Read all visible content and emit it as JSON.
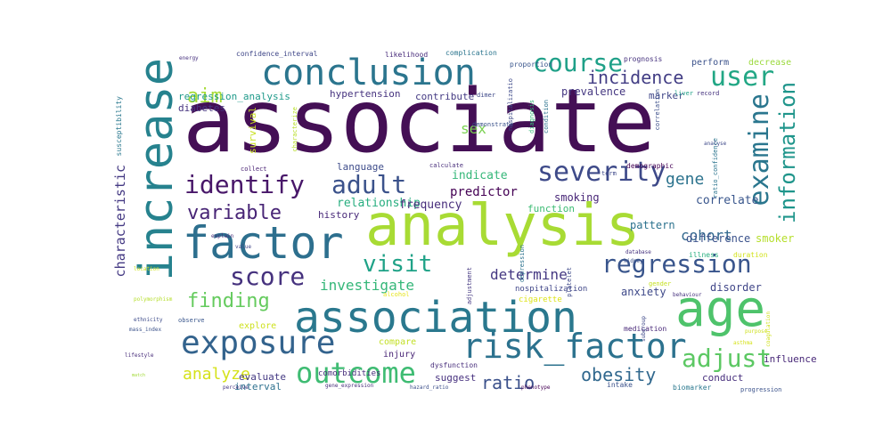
{
  "words": [
    {
      "text": "associate",
      "color": "#440f55"
    },
    {
      "text": "analysis",
      "color": "#a8db34"
    },
    {
      "text": "increase",
      "color": "#26828e"
    },
    {
      "text": "association",
      "color": "#2a788e"
    },
    {
      "text": "factor",
      "color": "#2d6f8e"
    },
    {
      "text": "age",
      "color": "#4ec36b"
    },
    {
      "text": "conclusion",
      "color": "#2b758e"
    },
    {
      "text": "risk_factor",
      "color": "#2c728e"
    },
    {
      "text": "exposure",
      "color": "#33638d"
    },
    {
      "text": "identify",
      "color": "#481769"
    },
    {
      "text": "adult",
      "color": "#3b528b"
    },
    {
      "text": "severity",
      "color": "#3e4a89"
    },
    {
      "text": "regression",
      "color": "#39558c"
    },
    {
      "text": "outcome",
      "color": "#3fbc73"
    },
    {
      "text": "course",
      "color": "#1fa088"
    },
    {
      "text": "user",
      "color": "#22a785"
    },
    {
      "text": "examine",
      "color": "#2a768e"
    },
    {
      "text": "information",
      "color": "#1f958b"
    },
    {
      "text": "variable",
      "color": "#482576"
    },
    {
      "text": "score",
      "color": "#46327e"
    },
    {
      "text": "visit",
      "color": "#1fa287"
    },
    {
      "text": "adjust",
      "color": "#5cc863"
    },
    {
      "text": "aim",
      "color": "#a5db36"
    },
    {
      "text": "finding",
      "color": "#65cb5e"
    },
    {
      "text": "analyze",
      "color": "#d5e21a"
    },
    {
      "text": "obesity",
      "color": "#31688e"
    },
    {
      "text": "ratio",
      "color": "#3b518b"
    },
    {
      "text": "characteristic",
      "color": "#443983"
    },
    {
      "text": "cohort",
      "color": "#31688e"
    },
    {
      "text": "gene",
      "color": "#2c738e"
    },
    {
      "text": "incidence",
      "color": "#433e85"
    },
    {
      "text": "investigate",
      "color": "#35b779"
    },
    {
      "text": "determine",
      "color": "#453882"
    },
    {
      "text": "sex",
      "color": "#7ad151"
    },
    {
      "text": "predictor",
      "color": "#440154"
    },
    {
      "text": "indicate",
      "color": "#35b779"
    },
    {
      "text": "relationship",
      "color": "#28ae80"
    },
    {
      "text": "frequency",
      "color": "#472d7b"
    },
    {
      "text": "smoking",
      "color": "#482677"
    },
    {
      "text": "correlate",
      "color": "#39568c"
    },
    {
      "text": "pattern",
      "color": "#2c728e"
    },
    {
      "text": "difference",
      "color": "#3b528b"
    },
    {
      "text": "smoker",
      "color": "#b5de2b"
    },
    {
      "text": "anxiety",
      "color": "#3e4989"
    },
    {
      "text": "disorder",
      "color": "#404688"
    },
    {
      "text": "conduct",
      "color": "#472f7d"
    },
    {
      "text": "influence",
      "color": "#482878"
    },
    {
      "text": "prevalence",
      "color": "#453781"
    },
    {
      "text": "marker",
      "color": "#404688"
    },
    {
      "text": "hypertension",
      "color": "#46337f"
    },
    {
      "text": "contribute",
      "color": "#443a83"
    },
    {
      "text": "regression_analysis",
      "color": "#1f9a8a"
    },
    {
      "text": "language",
      "color": "#3e4c8a"
    },
    {
      "text": "history",
      "color": "#482979"
    },
    {
      "text": "function",
      "color": "#3dbc74"
    },
    {
      "text": "suggest",
      "color": "#46307e"
    },
    {
      "text": "interval",
      "color": "#2d708e"
    },
    {
      "text": "evaluate",
      "color": "#443983"
    },
    {
      "text": "explore",
      "color": "#cde11d"
    },
    {
      "text": "compare",
      "color": "#c2df23"
    },
    {
      "text": "injury",
      "color": "#482475"
    },
    {
      "text": "comorbidities",
      "color": "#472d7b"
    },
    {
      "text": "nospitalization",
      "color": "#404688"
    },
    {
      "text": "cigarette",
      "color": "#dde318"
    },
    {
      "text": "diabetes",
      "color": "#46337f"
    },
    {
      "text": "survival",
      "color": "#c8e020"
    },
    {
      "text": "perform",
      "color": "#3b528b"
    },
    {
      "text": "decrease",
      "color": "#9bd93c"
    },
    {
      "text": "confidence_interval",
      "color": "#3f4788"
    },
    {
      "text": "likelihood",
      "color": "#472a7a"
    },
    {
      "text": "complication",
      "color": "#2b758e"
    },
    {
      "text": "prognosis",
      "color": "#46327e"
    },
    {
      "text": "proportion",
      "color": "#39558c"
    },
    {
      "text": "energy",
      "color": "#46307e"
    },
    {
      "text": "susceptibility",
      "color": "#2a788e"
    },
    {
      "text": "nospitalizatio",
      "color": "#3e4a89"
    },
    {
      "text": "demonstrate",
      "color": "#3b528b"
    },
    {
      "text": "dimer",
      "color": "#3e4989"
    },
    {
      "text": "characterize",
      "color": "#b8de29"
    },
    {
      "text": "collect",
      "color": "#482173"
    },
    {
      "text": "calculate",
      "color": "#472c7a"
    },
    {
      "text": "demographic",
      "color": "#440154"
    },
    {
      "text": "liver",
      "color": "#1fa287"
    },
    {
      "text": "record",
      "color": "#46327e"
    },
    {
      "text": "ratio_confidence",
      "color": "#2b748e"
    },
    {
      "text": "correlation",
      "color": "#3c4f8a"
    },
    {
      "text": "diagnosis",
      "color": "#35b779"
    },
    {
      "text": "condition",
      "color": "#2c738e"
    },
    {
      "text": "term",
      "color": "#3e4989"
    },
    {
      "text": "analyse",
      "color": "#3e4989"
    },
    {
      "text": "illness",
      "color": "#29af7f"
    },
    {
      "text": "duration",
      "color": "#d2e21b"
    },
    {
      "text": "database",
      "color": "#46327e"
    },
    {
      "text": "kidney",
      "color": "#3b528b"
    },
    {
      "text": "medication",
      "color": "#482878"
    },
    {
      "text": "biomarker",
      "color": "#2a788e"
    },
    {
      "text": "intake",
      "color": "#3b528b"
    },
    {
      "text": "dysfunction",
      "color": "#472d7b"
    },
    {
      "text": "adjustment",
      "color": "#453882"
    },
    {
      "text": "depression",
      "color": "#2c728e"
    },
    {
      "text": "platelet",
      "color": "#3e4989"
    },
    {
      "text": "progression",
      "color": "#3b528b"
    },
    {
      "text": "observe",
      "color": "#39568c"
    },
    {
      "text": "perceive",
      "color": "#453781"
    },
    {
      "text": "gene_expression",
      "color": "#472d7b"
    },
    {
      "text": "hazard_ratio",
      "color": "#3c4f8a"
    },
    {
      "text": "phenotype",
      "color": "#440154"
    },
    {
      "text": "lifestyle",
      "color": "#472c7a"
    },
    {
      "text": "ethnicity",
      "color": "#3e4c8a"
    },
    {
      "text": "mass_index",
      "color": "#3b528b"
    },
    {
      "text": "polymorphism",
      "color": "#b5de2b"
    },
    {
      "text": "alcohol",
      "color": "#e5e419"
    },
    {
      "text": "gender",
      "color": "#c5e021"
    },
    {
      "text": "value",
      "color": "#404688"
    },
    {
      "text": "explain",
      "color": "#472c7a"
    },
    {
      "text": "location",
      "color": "#cde11d"
    },
    {
      "text": "match",
      "color": "#a2da37"
    },
    {
      "text": "behaviour",
      "color": "#46327e"
    },
    {
      "text": "subgroup",
      "color": "#3e4989"
    },
    {
      "text": "coagulation",
      "color": "#d0e11c"
    },
    {
      "text": "purpose",
      "color": "#cde11d"
    },
    {
      "text": "asthma",
      "color": "#d5e21a"
    }
  ]
}
